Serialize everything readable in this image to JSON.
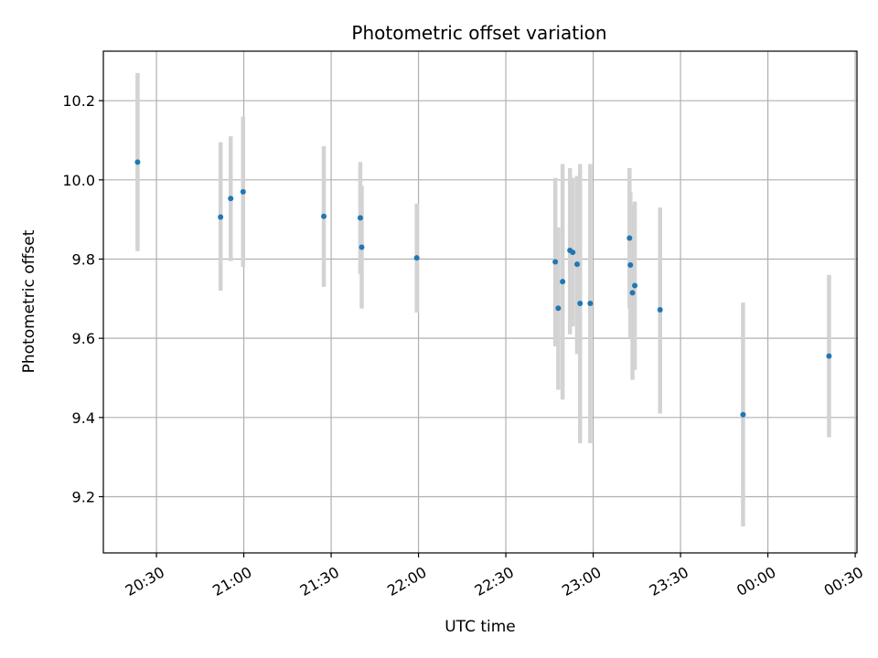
{
  "chart_data": {
    "type": "scatter",
    "title": "Photometric offset variation",
    "xlabel": "UTC time",
    "ylabel": "Photometric offset",
    "xlim": [
      20.196,
      24.51
    ],
    "ylim": [
      9.058,
      10.325
    ],
    "x_ticks": [
      {
        "value": 20.5,
        "label": "20:30"
      },
      {
        "value": 21.0,
        "label": "21:00"
      },
      {
        "value": 21.5,
        "label": "21:30"
      },
      {
        "value": 22.0,
        "label": "22:00"
      },
      {
        "value": 22.5,
        "label": "22:30"
      },
      {
        "value": 23.0,
        "label": "23:00"
      },
      {
        "value": 23.5,
        "label": "23:30"
      },
      {
        "value": 24.0,
        "label": "00:00"
      },
      {
        "value": 24.5,
        "label": "00:30"
      }
    ],
    "y_ticks": [
      {
        "value": 9.2,
        "label": "9.2"
      },
      {
        "value": 9.4,
        "label": "9.4"
      },
      {
        "value": 9.6,
        "label": "9.6"
      },
      {
        "value": 9.8,
        "label": "9.8"
      },
      {
        "value": 10.0,
        "label": "10.0"
      },
      {
        "value": 10.2,
        "label": "10.2"
      }
    ],
    "grid": true,
    "series": [
      {
        "name": "Photometric offset",
        "marker_color": "#1f77b4",
        "errorbar_color": "#d3d3d3",
        "points": [
          {
            "x": 20.392,
            "y": 10.045,
            "lo": 9.82,
            "hi": 10.27
          },
          {
            "x": 20.867,
            "y": 9.906,
            "lo": 9.72,
            "hi": 10.095
          },
          {
            "x": 20.925,
            "y": 9.953,
            "lo": 9.795,
            "hi": 10.11
          },
          {
            "x": 20.996,
            "y": 9.97,
            "lo": 9.78,
            "hi": 10.16
          },
          {
            "x": 21.458,
            "y": 9.908,
            "lo": 9.73,
            "hi": 10.085
          },
          {
            "x": 21.667,
            "y": 9.904,
            "lo": 9.762,
            "hi": 10.045
          },
          {
            "x": 21.675,
            "y": 9.83,
            "lo": 9.675,
            "hi": 9.985
          },
          {
            "x": 21.99,
            "y": 9.803,
            "lo": 9.665,
            "hi": 9.94
          },
          {
            "x": 22.783,
            "y": 9.793,
            "lo": 9.58,
            "hi": 10.005
          },
          {
            "x": 22.8,
            "y": 9.676,
            "lo": 9.47,
            "hi": 9.88
          },
          {
            "x": 22.825,
            "y": 9.743,
            "lo": 9.445,
            "hi": 10.04
          },
          {
            "x": 22.867,
            "y": 9.822,
            "lo": 9.61,
            "hi": 10.03
          },
          {
            "x": 22.883,
            "y": 9.817,
            "lo": 9.63,
            "hi": 10.005
          },
          {
            "x": 22.908,
            "y": 9.787,
            "lo": 9.56,
            "hi": 10.01
          },
          {
            "x": 22.925,
            "y": 9.688,
            "lo": 9.335,
            "hi": 10.04
          },
          {
            "x": 22.983,
            "y": 9.688,
            "lo": 9.335,
            "hi": 10.04
          },
          {
            "x": 23.208,
            "y": 9.853,
            "lo": 9.675,
            "hi": 10.03
          },
          {
            "x": 23.213,
            "y": 9.785,
            "lo": 9.6,
            "hi": 9.97
          },
          {
            "x": 23.225,
            "y": 9.715,
            "lo": 9.495,
            "hi": 9.935
          },
          {
            "x": 23.238,
            "y": 9.733,
            "lo": 9.52,
            "hi": 9.945
          },
          {
            "x": 23.383,
            "y": 9.672,
            "lo": 9.41,
            "hi": 9.93
          },
          {
            "x": 23.858,
            "y": 9.407,
            "lo": 9.125,
            "hi": 9.69
          },
          {
            "x": 24.35,
            "y": 9.555,
            "lo": 9.35,
            "hi": 9.76
          }
        ]
      }
    ]
  }
}
